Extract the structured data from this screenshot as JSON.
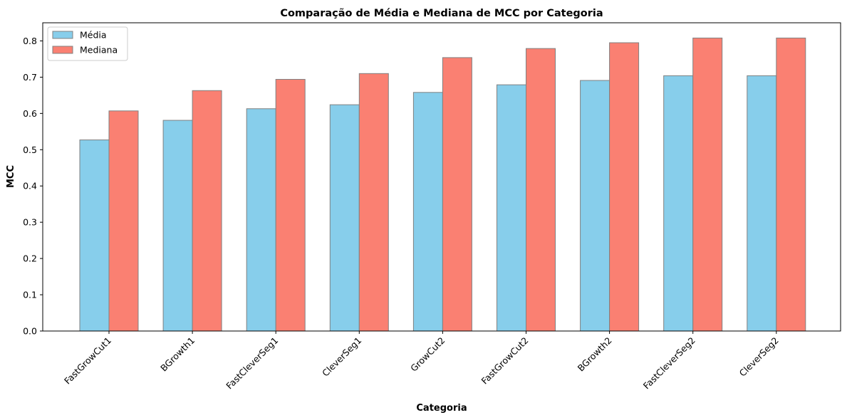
{
  "chart_data": {
    "type": "bar",
    "title": "Comparação de Média e Mediana de MCC por Categoria",
    "xlabel": "Categoria",
    "ylabel": "MCC",
    "ylim": [
      0,
      0.85
    ],
    "yticks": [
      "0.0",
      "0.1",
      "0.2",
      "0.3",
      "0.4",
      "0.5",
      "0.6",
      "0.7",
      "0.8"
    ],
    "categories": [
      "FastGrowCut1",
      "BGrowth1",
      "FastCleverSeg1",
      "CleverSeg1",
      "GrowCut2",
      "FastGrowCut2",
      "BGrowth2",
      "FastCleverSeg2",
      "CleverSeg2"
    ],
    "series": [
      {
        "name": "Média",
        "color": "#87CEEB",
        "values": [
          0.527,
          0.581,
          0.613,
          0.624,
          0.658,
          0.679,
          0.691,
          0.704,
          0.704
        ]
      },
      {
        "name": "Mediana",
        "color": "#FA8072",
        "values": [
          0.607,
          0.663,
          0.694,
          0.71,
          0.754,
          0.779,
          0.795,
          0.808,
          0.808
        ]
      }
    ],
    "grid": false,
    "legend_position": "top-left",
    "edge_color": "#808080"
  }
}
